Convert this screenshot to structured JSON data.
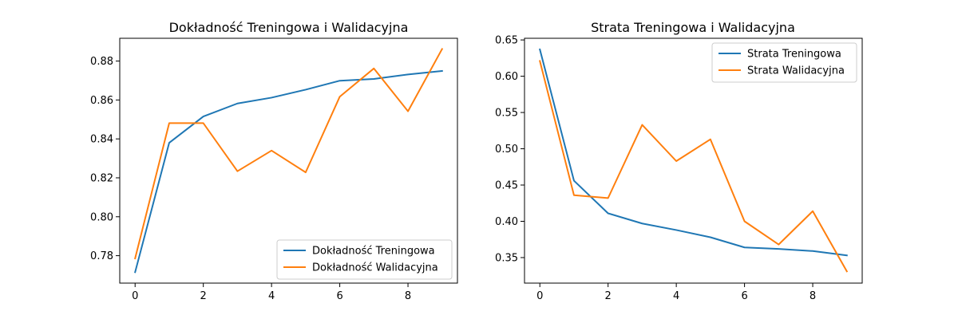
{
  "chart_data": [
    {
      "type": "line",
      "title": "Dokładność Treningowa i Walidacyjna",
      "xlabel": "",
      "ylabel": "",
      "x": [
        0,
        1,
        2,
        3,
        4,
        5,
        6,
        7,
        8,
        9
      ],
      "xlim": [
        -0.45,
        9.45
      ],
      "ylim": [
        0.7659,
        0.8917
      ],
      "xticks": [
        0,
        2,
        4,
        6,
        8
      ],
      "yticks": [
        0.78,
        0.8,
        0.82,
        0.84,
        0.86,
        0.88
      ],
      "xtick_labels": [
        "0",
        "2",
        "4",
        "6",
        "8"
      ],
      "ytick_labels": [
        "0.78",
        "0.80",
        "0.82",
        "0.84",
        "0.86",
        "0.88"
      ],
      "grid": false,
      "legend_position": "lower right",
      "series": [
        {
          "name": "Dokładność Treningowa",
          "color": "#1f77b4",
          "values": [
            0.7715,
            0.838,
            0.8515,
            0.8582,
            0.8612,
            0.8653,
            0.8699,
            0.8708,
            0.8731,
            0.8749
          ]
        },
        {
          "name": "Dokładność Walidacyjna",
          "color": "#ff7f0e",
          "values": [
            0.7786,
            0.8481,
            0.8481,
            0.8234,
            0.834,
            0.8228,
            0.8617,
            0.8762,
            0.8542,
            0.8862
          ]
        }
      ]
    },
    {
      "type": "line",
      "title": "Strata Treningowa i Walidacyjna",
      "xlabel": "",
      "ylabel": "",
      "x": [
        0,
        1,
        2,
        3,
        4,
        5,
        6,
        7,
        8,
        9
      ],
      "xlim": [
        -0.45,
        9.45
      ],
      "ylim": [
        0.3148,
        0.6523
      ],
      "xticks": [
        0,
        2,
        4,
        6,
        8
      ],
      "yticks": [
        0.35,
        0.4,
        0.45,
        0.5,
        0.55,
        0.6,
        0.65
      ],
      "xtick_labels": [
        "0",
        "2",
        "4",
        "6",
        "8"
      ],
      "ytick_labels": [
        "0.35",
        "0.40",
        "0.45",
        "0.50",
        "0.55",
        "0.60",
        "0.65"
      ],
      "grid": false,
      "legend_position": "upper right",
      "series": [
        {
          "name": "Strata Treningowa",
          "color": "#1f77b4",
          "values": [
            0.637,
            0.456,
            0.411,
            0.397,
            0.388,
            0.378,
            0.364,
            0.362,
            0.359,
            0.353
          ]
        },
        {
          "name": "Strata Walidacyjna",
          "color": "#ff7f0e",
          "values": [
            0.621,
            0.436,
            0.432,
            0.533,
            0.483,
            0.513,
            0.4,
            0.368,
            0.414,
            0.331
          ]
        }
      ]
    }
  ]
}
